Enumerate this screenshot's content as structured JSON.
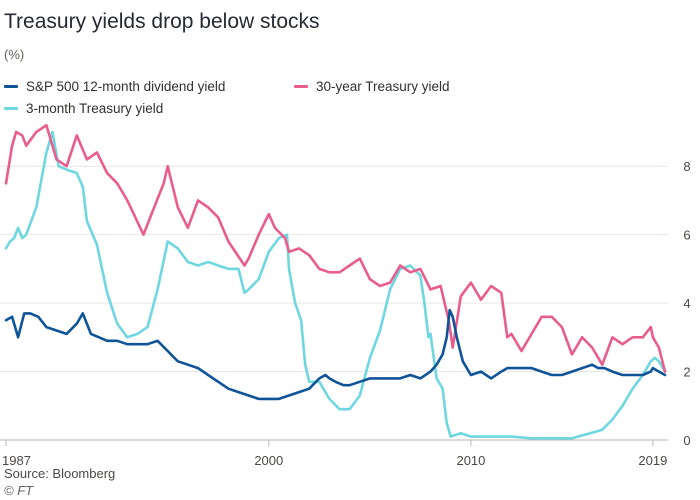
{
  "header": {
    "title": "Treasury yields drop below stocks",
    "unit": "(%)"
  },
  "legend": [
    {
      "label": "S&P 500 12-month dividend yield",
      "color": "#0f5499"
    },
    {
      "label": "30-year Treasury yield",
      "color": "#e95d8c"
    },
    {
      "label": "3-month Treasury yield",
      "color": "#6fd7e0"
    }
  ],
  "footer": {
    "source": "Source: Bloomberg",
    "credit": "© FT"
  },
  "chart_data": {
    "type": "line",
    "title": "Treasury yields drop below stocks",
    "ylabel": "(%)",
    "xlabel": "",
    "xlim": [
      1987,
      2019.65
    ],
    "ylim": [
      0,
      9
    ],
    "y_axis_side": "right",
    "x_ticks": [
      1987,
      2000,
      2010,
      2019
    ],
    "x_tick_labels": [
      "1987",
      "2000",
      "2010",
      "2019"
    ],
    "y_ticks": [
      0,
      2,
      4,
      6,
      8
    ],
    "y_tick_labels": [
      "0",
      "2",
      "4",
      "6",
      "8"
    ],
    "grid": "horizontal",
    "series": [
      {
        "name": "S&P 500 12-month dividend yield",
        "color": "#0f5499",
        "x": [
          1987.0,
          1987.3,
          1987.6,
          1987.9,
          1988.2,
          1988.6,
          1989.0,
          1989.5,
          1990.0,
          1990.5,
          1990.8,
          1991.2,
          1991.6,
          1992.0,
          1992.5,
          1993.0,
          1993.5,
          1994.0,
          1994.5,
          1995.0,
          1995.5,
          1996.0,
          1996.5,
          1997.0,
          1997.5,
          1998.0,
          1998.5,
          1999.0,
          1999.5,
          2000.0,
          2000.5,
          2001.0,
          2001.5,
          2002.0,
          2002.5,
          2002.8,
          2003.0,
          2003.3,
          2003.7,
          2004.0,
          2004.5,
          2005.0,
          2005.5,
          2006.0,
          2006.5,
          2007.0,
          2007.5,
          2008.0,
          2008.3,
          2008.6,
          2008.8,
          2008.95,
          2009.1,
          2009.3,
          2009.6,
          2010.0,
          2010.5,
          2011.0,
          2011.5,
          2011.8,
          2012.0,
          2012.5,
          2013.0,
          2013.5,
          2014.0,
          2014.5,
          2015.0,
          2015.5,
          2016.0,
          2016.3,
          2016.6,
          2017.0,
          2017.5,
          2018.0,
          2018.5,
          2018.9,
          2019.0,
          2019.3,
          2019.6
        ],
        "values": [
          3.5,
          3.6,
          3.0,
          3.7,
          3.7,
          3.6,
          3.3,
          3.2,
          3.1,
          3.4,
          3.7,
          3.1,
          3.0,
          2.9,
          2.9,
          2.8,
          2.8,
          2.8,
          2.9,
          2.6,
          2.3,
          2.2,
          2.1,
          1.9,
          1.7,
          1.5,
          1.4,
          1.3,
          1.2,
          1.2,
          1.2,
          1.3,
          1.4,
          1.5,
          1.8,
          1.9,
          1.8,
          1.7,
          1.6,
          1.6,
          1.7,
          1.8,
          1.8,
          1.8,
          1.8,
          1.9,
          1.8,
          2.0,
          2.2,
          2.5,
          3.0,
          3.8,
          3.6,
          3.0,
          2.3,
          1.9,
          2.0,
          1.8,
          2.0,
          2.1,
          2.1,
          2.1,
          2.1,
          2.0,
          1.9,
          1.9,
          2.0,
          2.1,
          2.2,
          2.1,
          2.1,
          2.0,
          1.9,
          1.9,
          1.9,
          2.0,
          2.1,
          2.0,
          1.9
        ]
      },
      {
        "name": "30-year Treasury yield",
        "color": "#e95d8c",
        "x": [
          1987.0,
          1987.3,
          1987.5,
          1987.8,
          1988.0,
          1988.5,
          1989.0,
          1989.5,
          1990.0,
          1990.5,
          1991.0,
          1991.5,
          1992.0,
          1992.5,
          1993.0,
          1993.8,
          1994.2,
          1994.8,
          1995.0,
          1995.5,
          1996.0,
          1996.5,
          1997.0,
          1997.5,
          1998.0,
          1998.8,
          1999.0,
          1999.5,
          2000.0,
          2000.3,
          2000.8,
          2001.0,
          2001.5,
          2002.0,
          2002.5,
          2003.0,
          2003.5,
          2004.0,
          2004.5,
          2005.0,
          2005.5,
          2006.0,
          2006.5,
          2007.0,
          2007.5,
          2008.0,
          2008.5,
          2008.9,
          2009.1,
          2009.5,
          2010.0,
          2010.5,
          2011.0,
          2011.5,
          2011.8,
          2012.0,
          2012.5,
          2013.0,
          2013.5,
          2014.0,
          2014.5,
          2015.0,
          2015.5,
          2016.0,
          2016.5,
          2017.0,
          2017.5,
          2018.0,
          2018.5,
          2018.9,
          2019.0,
          2019.3,
          2019.6
        ],
        "values": [
          7.5,
          8.6,
          9.0,
          8.9,
          8.6,
          9.0,
          9.2,
          8.2,
          8.0,
          8.9,
          8.2,
          8.4,
          7.8,
          7.5,
          7.0,
          6.0,
          6.6,
          7.5,
          8.0,
          6.8,
          6.2,
          7.0,
          6.8,
          6.5,
          5.8,
          5.1,
          5.3,
          6.0,
          6.6,
          6.2,
          5.9,
          5.5,
          5.6,
          5.4,
          5.0,
          4.9,
          4.9,
          5.1,
          5.3,
          4.7,
          4.5,
          4.6,
          5.1,
          4.9,
          5.0,
          4.4,
          4.5,
          3.5,
          2.7,
          4.2,
          4.6,
          4.1,
          4.5,
          4.3,
          3.0,
          3.1,
          2.6,
          3.1,
          3.6,
          3.6,
          3.3,
          2.5,
          3.0,
          2.7,
          2.2,
          3.0,
          2.8,
          3.0,
          3.0,
          3.3,
          3.0,
          2.7,
          2.0
        ]
      },
      {
        "name": "3-month Treasury yield",
        "color": "#6fd7e0",
        "x": [
          1987.0,
          1987.2,
          1987.4,
          1987.6,
          1987.8,
          1988.0,
          1988.5,
          1989.0,
          1989.3,
          1989.6,
          1990.0,
          1990.5,
          1990.8,
          1991.0,
          1991.5,
          1992.0,
          1992.5,
          1993.0,
          1993.5,
          1994.0,
          1994.5,
          1995.0,
          1995.5,
          1996.0,
          1996.5,
          1997.0,
          1997.5,
          1998.0,
          1998.5,
          1998.8,
          1999.0,
          1999.5,
          2000.0,
          2000.5,
          2000.9,
          2001.0,
          2001.3,
          2001.6,
          2001.8,
          2002.0,
          2002.5,
          2003.0,
          2003.5,
          2004.0,
          2004.5,
          2005.0,
          2005.5,
          2006.0,
          2006.5,
          2007.0,
          2007.5,
          2007.7,
          2007.9,
          2008.0,
          2008.3,
          2008.6,
          2008.8,
          2009.0,
          2009.5,
          2010.0,
          2011.0,
          2012.0,
          2013.0,
          2014.0,
          2015.0,
          2015.9,
          2016.5,
          2017.0,
          2017.5,
          2018.0,
          2018.5,
          2018.9,
          2019.1,
          2019.3,
          2019.6
        ],
        "values": [
          5.6,
          5.8,
          5.9,
          6.2,
          5.9,
          6.0,
          6.8,
          8.4,
          9.0,
          8.0,
          7.9,
          7.8,
          7.4,
          6.4,
          5.7,
          4.3,
          3.4,
          3.0,
          3.1,
          3.3,
          4.4,
          5.8,
          5.6,
          5.2,
          5.1,
          5.2,
          5.1,
          5.0,
          5.0,
          4.3,
          4.4,
          4.7,
          5.5,
          5.9,
          6.0,
          5.0,
          4.0,
          3.5,
          2.2,
          1.7,
          1.7,
          1.2,
          0.9,
          0.9,
          1.3,
          2.4,
          3.2,
          4.4,
          5.0,
          5.1,
          4.8,
          4.0,
          3.0,
          3.1,
          1.8,
          1.5,
          0.5,
          0.1,
          0.2,
          0.1,
          0.1,
          0.1,
          0.05,
          0.05,
          0.05,
          0.2,
          0.3,
          0.6,
          1.0,
          1.5,
          1.9,
          2.3,
          2.4,
          2.3,
          2.0
        ]
      }
    ]
  }
}
